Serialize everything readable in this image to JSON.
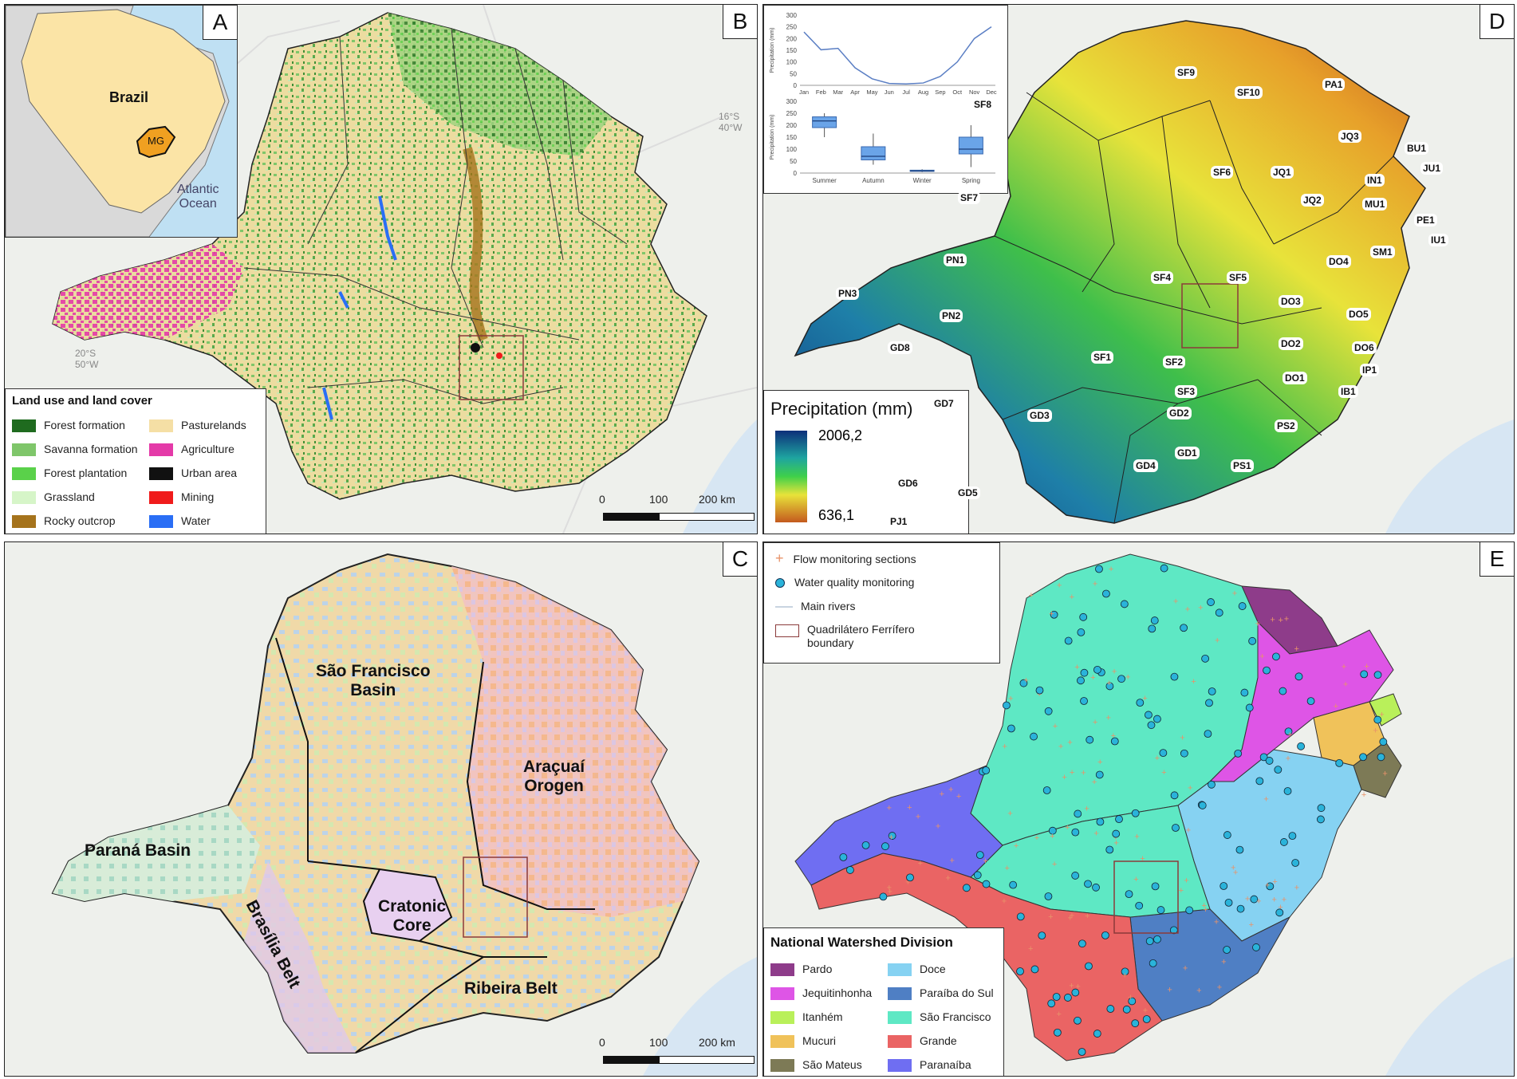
{
  "panels": {
    "a": {
      "letter": "A",
      "country": "Brazil",
      "state": "MG",
      "ocean": "Atlantic\nOcean"
    },
    "b": {
      "letter": "B",
      "coord_ne": "16°S\n40°W",
      "coord_sw": "20°S\n50°W",
      "legend_title": "Land use and land cover",
      "legend": [
        {
          "label": "Forest formation",
          "color": "#1f6b1f"
        },
        {
          "label": "Savanna formation",
          "color": "#7fc66a"
        },
        {
          "label": "Forest plantation",
          "color": "#5ad14a"
        },
        {
          "label": "Grassland",
          "color": "#d6f5c8"
        },
        {
          "label": "Rocky outcrop",
          "color": "#a5731c"
        },
        {
          "label": "Pasturelands",
          "color": "#f5dfa5"
        },
        {
          "label": "Agriculture",
          "color": "#e43aa8"
        },
        {
          "label": "Urban area",
          "color": "#111111"
        },
        {
          "label": "Mining",
          "color": "#f01b1b"
        },
        {
          "label": "Water",
          "color": "#2a6ef5"
        }
      ],
      "scale": [
        "0",
        "100",
        "200 km"
      ]
    },
    "c": {
      "letter": "C",
      "regions": [
        "São Francisco\nBasin",
        "Araçuaí\nOrogen",
        "Paraná Basin",
        "Brasília Belt",
        "Cratonic\nCore",
        "Ribeira Belt"
      ],
      "scale": [
        "0",
        "100",
        "200 km"
      ]
    },
    "d": {
      "letter": "D",
      "legend_title": "Precipitation (mm)",
      "max": "2006,2",
      "min": "636,1",
      "basins": [
        "SF9",
        "SF10",
        "PA1",
        "SF8",
        "JQ3",
        "BU1",
        "JU1",
        "SF6",
        "JQ1",
        "IN1",
        "SF7",
        "JQ2",
        "MU1",
        "PE1",
        "IU1",
        "SM1",
        "DO4",
        "PN1",
        "SF4",
        "SF5",
        "PN3",
        "DO3",
        "PN2",
        "DO5",
        "DO2",
        "GD8",
        "DO6",
        "SF1",
        "SF2",
        "IP1",
        "DO1",
        "SF3",
        "IB1",
        "GD7",
        "GD3",
        "GD2",
        "PS2",
        "GD1",
        "PS1",
        "GD4",
        "GD6",
        "GD5",
        "PJ1"
      ],
      "inset": {
        "ylabel_top": "Precipitation (mm)",
        "ylabel_bottom": "Precipitation (mm)",
        "y_ticks_top": [
          "0",
          "50",
          "100",
          "150",
          "200",
          "250",
          "300"
        ],
        "y_ticks_bottom": [
          "0",
          "50",
          "100",
          "150",
          "200",
          "250",
          "300"
        ],
        "chart_data": [
          {
            "type": "line",
            "x": [
              "Jan",
              "Feb",
              "Mar",
              "Apr",
              "May",
              "Jun",
              "Jul",
              "Aug",
              "Sep",
              "Oct",
              "Nov",
              "Dec"
            ],
            "series": [
              {
                "values": [
                  228,
                  152,
                  158,
                  75,
                  28,
                  8,
                  6,
                  10,
                  38,
                  100,
                  200,
                  250
                ]
              }
            ],
            "ylim": [
              0,
              300
            ]
          },
          {
            "type": "box",
            "categories": [
              "Summer",
              "Autumn",
              "Winter",
              "Spring"
            ],
            "series": [
              {
                "values": [
                  {
                    "min": 150,
                    "q1": 190,
                    "median": 218,
                    "q3": 235,
                    "max": 250
                  },
                  {
                    "min": 35,
                    "q1": 55,
                    "median": 70,
                    "q3": 110,
                    "max": 165
                  },
                  {
                    "min": 4,
                    "q1": 7,
                    "median": 9,
                    "q3": 12,
                    "max": 16
                  },
                  {
                    "min": 25,
                    "q1": 80,
                    "median": 100,
                    "q3": 150,
                    "max": 200
                  }
                ]
              }
            ],
            "ylim": [
              0,
              300
            ]
          }
        ]
      }
    },
    "e": {
      "letter": "E",
      "legend_top": [
        {
          "label": "Flow monitoring sections",
          "symbol": "cross"
        },
        {
          "label": "Water quality monitoring",
          "symbol": "dot"
        },
        {
          "label": "Main rivers",
          "symbol": "line"
        },
        {
          "label": "Quadrilátero Ferrífero\nboundary",
          "symbol": "rect"
        }
      ],
      "watershed_title": "National Watershed Division",
      "watersheds": [
        {
          "label": "Pardo",
          "color": "#8e3c8a"
        },
        {
          "label": "Jequitinhonha",
          "color": "#de55e6"
        },
        {
          "label": "Itanhém",
          "color": "#b9f05a"
        },
        {
          "label": "Mucuri",
          "color": "#f0c25a"
        },
        {
          "label": "São Mateus",
          "color": "#7d7a56"
        },
        {
          "label": "Doce",
          "color": "#86d2f2"
        },
        {
          "label": "Paraíba do Sul",
          "color": "#4f7fc4"
        },
        {
          "label": "São Francisco",
          "color": "#5ee8c4"
        },
        {
          "label": "Grande",
          "color": "#ea6464"
        },
        {
          "label": "Paranaíba",
          "color": "#6f6ef2"
        }
      ]
    }
  }
}
